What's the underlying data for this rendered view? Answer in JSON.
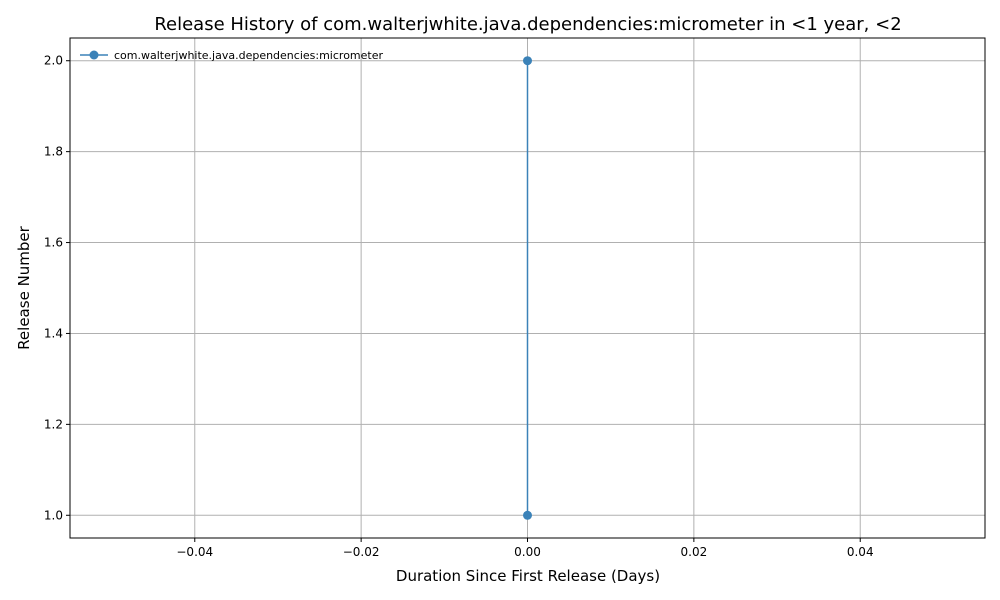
{
  "chart_data": {
    "type": "line",
    "title": "Release History of com.walterjwhite.java.dependencies:micrometer in <1 year, <2",
    "xlabel": "Duration Since First Release (Days)",
    "ylabel": "Release Number",
    "xlim": [
      -0.055,
      0.055
    ],
    "ylim": [
      0.95,
      2.05
    ],
    "xticks": [
      -0.04,
      -0.02,
      0.0,
      0.02,
      0.04
    ],
    "xtick_labels": [
      "−0.04",
      "−0.02",
      "0.00",
      "0.02",
      "0.04"
    ],
    "yticks": [
      1.0,
      1.2,
      1.4,
      1.6,
      1.8,
      2.0
    ],
    "ytick_labels": [
      "1.0",
      "1.2",
      "1.4",
      "1.6",
      "1.8",
      "2.0"
    ],
    "grid": true,
    "legend_position": "top-left",
    "series": [
      {
        "name": "com.walterjwhite.java.dependencies:micrometer",
        "color": "#3b82b8",
        "marker": "circle",
        "x": [
          0,
          0
        ],
        "y": [
          1,
          2
        ]
      }
    ]
  }
}
